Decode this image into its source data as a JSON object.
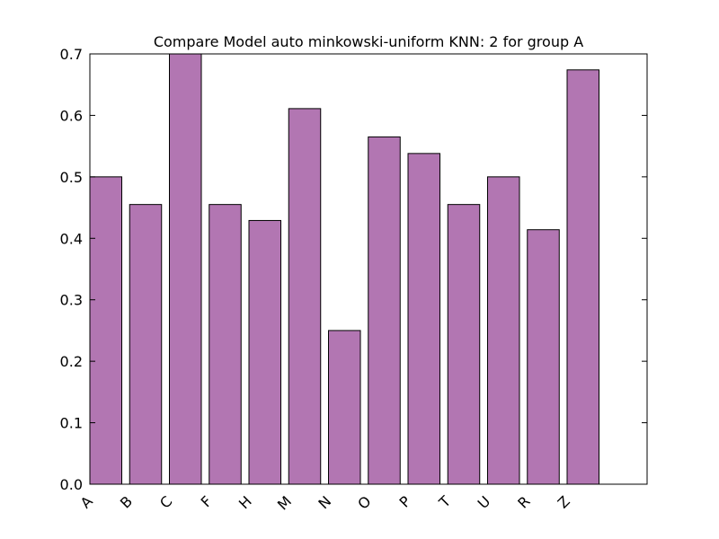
{
  "chart_data": {
    "type": "bar",
    "title": "Compare Model auto minkowski-uniform KNN: 2 for group A",
    "xlabel": "",
    "ylabel": "",
    "categories": [
      "A",
      "B",
      "C",
      "F",
      "H",
      "M",
      "N",
      "O",
      "P",
      "T",
      "U",
      "R",
      "Z"
    ],
    "values": [
      0.5,
      0.455,
      0.7,
      0.455,
      0.429,
      0.611,
      0.25,
      0.565,
      0.538,
      0.455,
      0.5,
      0.414,
      0.674
    ],
    "ylim": [
      0,
      0.7
    ],
    "yticks": [
      "0.0",
      "0.1",
      "0.2",
      "0.3",
      "0.4",
      "0.5",
      "0.6",
      "0.7"
    ],
    "grid": false,
    "bar_color": "#b276b2",
    "edge_color": "#000000"
  }
}
